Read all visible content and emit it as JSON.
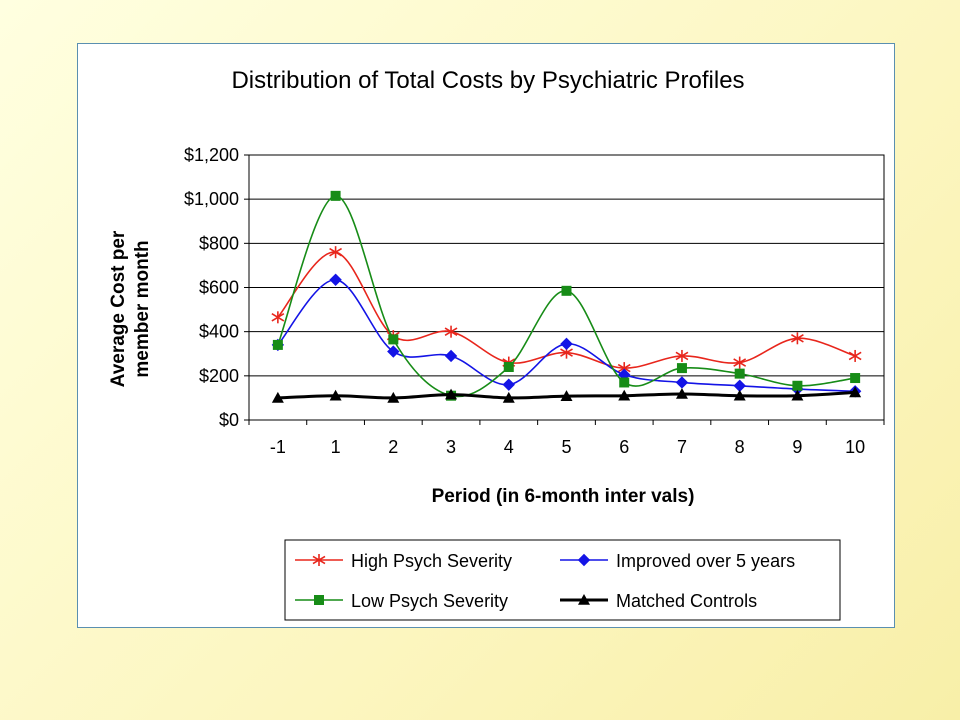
{
  "chart_data": {
    "type": "line",
    "title": "Distribution of Total Costs by Psychiatric Profiles",
    "xlabel": "Period (in 6-month inter vals)",
    "ylabel_lines": [
      "Average Cost per",
      "member month"
    ],
    "categories": [
      "-1",
      "1",
      "2",
      "3",
      "4",
      "5",
      "6",
      "7",
      "8",
      "9",
      "10"
    ],
    "ylim": [
      0,
      1200
    ],
    "yticks": [
      0,
      200,
      400,
      600,
      800,
      1000,
      1200
    ],
    "ytick_labels": [
      "$0",
      "$200",
      "$400",
      "$600",
      "$800",
      "$1,000",
      "$1,200"
    ],
    "grid": "horizontal",
    "legend_position": "bottom",
    "series": [
      {
        "name": "High Psych Severity",
        "color": "#e8261c",
        "marker": "asterisk",
        "values": [
          465,
          760,
          380,
          400,
          260,
          305,
          235,
          290,
          260,
          370,
          290
        ]
      },
      {
        "name": "Improved over 5 years",
        "color": "#1414e6",
        "marker": "diamond",
        "values": [
          340,
          635,
          310,
          290,
          160,
          345,
          205,
          170,
          155,
          140,
          130
        ]
      },
      {
        "name": "Low Psych Severity",
        "color": "#178c17",
        "marker": "square",
        "values": [
          340,
          1015,
          365,
          110,
          240,
          585,
          170,
          235,
          210,
          155,
          190
        ]
      },
      {
        "name": "Matched Controls",
        "color": "#000000",
        "marker": "triangle",
        "values": [
          100,
          110,
          100,
          115,
          100,
          108,
          110,
          118,
          110,
          110,
          125
        ]
      }
    ]
  }
}
